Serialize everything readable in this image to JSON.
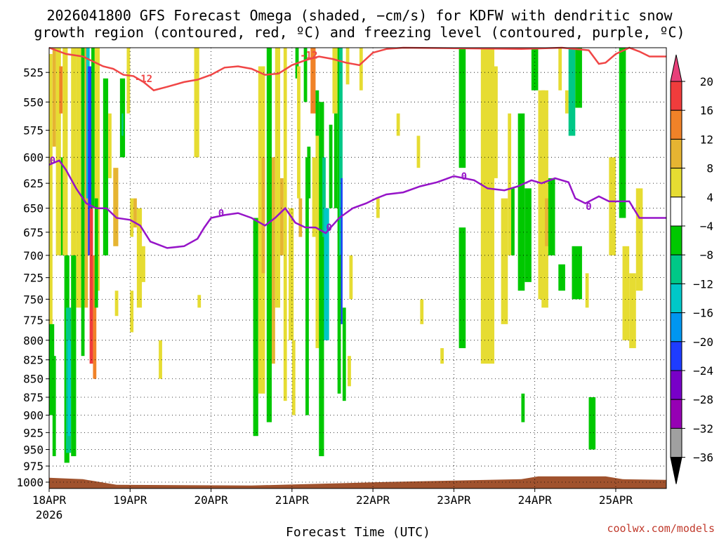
{
  "chart_data": {
    "type": "heatmap",
    "title_line1": "2026041800 GFS Forecast Omega (shaded, −cm/s) for KDFW with dendritic snow",
    "title_line2": "growth region (contoured, red, ºC) and freezing level (contoured, purple, ºC)",
    "xlabel": "Forecast Time (UTC)",
    "credit": "coolwx.com/models",
    "x_ticks": [
      {
        "label": "18APR",
        "hours": 0
      },
      {
        "label": "19APR",
        "hours": 24
      },
      {
        "label": "20APR",
        "hours": 48
      },
      {
        "label": "21APR",
        "hours": 72
      },
      {
        "label": "22APR",
        "hours": 96
      },
      {
        "label": "23APR",
        "hours": 120
      },
      {
        "label": "24APR",
        "hours": 144
      },
      {
        "label": "25APR",
        "hours": 168
      }
    ],
    "x_year_label": "2026",
    "xlim_hours": [
      0,
      183
    ],
    "y_ticks": [
      525,
      550,
      575,
      600,
      625,
      650,
      675,
      700,
      725,
      750,
      775,
      800,
      825,
      850,
      875,
      900,
      925,
      950,
      975,
      1000
    ],
    "ylim_hpa": [
      505,
      1010
    ],
    "y_scale": "log-pressure",
    "grid": "dotted",
    "colorbar": {
      "labels": [
        "20",
        "16",
        "12",
        "8",
        "4",
        "−4",
        "−8",
        "−12",
        "−16",
        "−20",
        "−24",
        "−28",
        "−32",
        "−36"
      ],
      "levels": [
        20,
        16,
        12,
        8,
        4,
        -4,
        -8,
        -12,
        -16,
        -20,
        -24,
        -28,
        -32,
        -36
      ],
      "colors": [
        "#e8407a",
        "#f03c3c",
        "#f08228",
        "#e6b432",
        "#e6dc32",
        "#ffffff",
        "#00c800",
        "#00c887",
        "#00c8c8",
        "#0096f0",
        "#1e3cff",
        "#7800c8",
        "#9600b4",
        "#a0a0a0",
        "#000000"
      ]
    },
    "contours": {
      "minus12_color": "#f04646",
      "freezing_color": "#9614c8",
      "minus12_label": "-12",
      "freezing_label": "0",
      "minus12_line": [
        [
          0,
          505
        ],
        [
          5,
          510
        ],
        [
          10,
          512
        ],
        [
          13,
          516
        ],
        [
          16,
          520
        ],
        [
          19,
          522
        ],
        [
          22,
          527
        ],
        [
          25,
          528
        ],
        [
          28,
          533
        ],
        [
          31,
          540
        ],
        [
          35,
          537
        ],
        [
          40,
          533
        ],
        [
          44,
          531
        ],
        [
          48,
          527
        ],
        [
          52,
          521
        ],
        [
          56,
          520
        ],
        [
          60,
          522
        ],
        [
          64,
          527
        ],
        [
          68,
          526
        ],
        [
          72,
          519
        ],
        [
          76,
          515
        ],
        [
          80,
          512
        ],
        [
          84,
          514
        ],
        [
          88,
          517
        ],
        [
          92,
          519
        ],
        [
          96,
          509
        ],
        [
          100,
          506
        ],
        [
          105,
          505
        ],
        [
          140,
          506
        ],
        [
          152,
          505
        ],
        [
          160,
          507
        ],
        [
          163,
          518
        ],
        [
          165,
          517
        ],
        [
          168,
          510
        ],
        [
          172,
          505
        ],
        [
          175,
          508
        ],
        [
          178,
          512
        ],
        [
          183,
          512
        ]
      ],
      "freezing_line": [
        [
          0,
          607
        ],
        [
          3,
          603
        ],
        [
          5,
          612
        ],
        [
          8,
          630
        ],
        [
          11,
          645
        ],
        [
          14,
          650
        ],
        [
          17,
          650
        ],
        [
          20,
          660
        ],
        [
          24,
          662
        ],
        [
          27,
          668
        ],
        [
          30,
          685
        ],
        [
          35,
          692
        ],
        [
          40,
          690
        ],
        [
          44,
          682
        ],
        [
          46,
          670
        ],
        [
          48,
          660
        ],
        [
          52,
          657
        ],
        [
          56,
          655
        ],
        [
          60,
          660
        ],
        [
          64,
          668
        ],
        [
          67,
          660
        ],
        [
          70,
          650
        ],
        [
          73,
          665
        ],
        [
          76,
          670
        ],
        [
          79,
          670
        ],
        [
          82,
          676
        ],
        [
          86,
          660
        ],
        [
          90,
          650
        ],
        [
          94,
          645
        ],
        [
          97,
          640
        ],
        [
          100,
          636
        ],
        [
          105,
          634
        ],
        [
          110,
          628
        ],
        [
          115,
          624
        ],
        [
          120,
          618
        ],
        [
          126,
          622
        ],
        [
          130,
          630
        ],
        [
          135,
          632
        ],
        [
          139,
          628
        ],
        [
          143,
          622
        ],
        [
          146,
          625
        ],
        [
          150,
          620
        ],
        [
          154,
          624
        ],
        [
          156,
          640
        ],
        [
          159,
          645
        ],
        [
          163,
          638
        ],
        [
          166,
          643
        ],
        [
          172,
          643
        ],
        [
          175,
          660
        ],
        [
          183,
          660
        ]
      ],
      "minus12_label_points": [
        [
          28,
          530
        ],
        [
          77,
          511
        ]
      ],
      "freezing_label_points": [
        [
          1,
          603
        ],
        [
          51,
          655
        ],
        [
          83,
          670
        ],
        [
          123,
          618
        ],
        [
          160,
          648
        ]
      ]
    },
    "cells": [
      {
        "x0": 0,
        "x1": 1,
        "p0": 510,
        "p1": 870,
        "v": 6
      },
      {
        "x0": 0,
        "x1": 1.5,
        "p0": 780,
        "p1": 900,
        "v": -6
      },
      {
        "x0": 1,
        "x1": 2,
        "p0": 505,
        "p1": 590,
        "v": 10
      },
      {
        "x0": 1,
        "x1": 2,
        "p0": 820,
        "p1": 960,
        "v": -6
      },
      {
        "x0": 2,
        "x1": 3.5,
        "p0": 505,
        "p1": 700,
        "v": 6
      },
      {
        "x0": 3,
        "x1": 4,
        "p0": 520,
        "p1": 560,
        "v": 14
      },
      {
        "x0": 3.5,
        "x1": 4.5,
        "p0": 600,
        "p1": 700,
        "v": -6
      },
      {
        "x0": 4,
        "x1": 5.5,
        "p0": 505,
        "p1": 700,
        "v": 6
      },
      {
        "x0": 4.5,
        "x1": 6,
        "p0": 700,
        "p1": 970,
        "v": -6
      },
      {
        "x0": 5,
        "x1": 6.5,
        "p0": 760,
        "p1": 955,
        "v": -10
      },
      {
        "x0": 5.5,
        "x1": 6.5,
        "p0": 800,
        "p1": 930,
        "v": -14
      },
      {
        "x0": 6.5,
        "x1": 8,
        "p0": 505,
        "p1": 700,
        "v": 6
      },
      {
        "x0": 6.5,
        "x1": 8,
        "p0": 700,
        "p1": 960,
        "v": -6
      },
      {
        "x0": 8,
        "x1": 9.5,
        "p0": 505,
        "p1": 760,
        "v": 6
      },
      {
        "x0": 9.5,
        "x1": 10.5,
        "p0": 505,
        "p1": 820,
        "v": -6
      },
      {
        "x0": 10.5,
        "x1": 11.5,
        "p0": 505,
        "p1": 760,
        "v": 10
      },
      {
        "x0": 11,
        "x1": 12,
        "p0": 505,
        "p1": 640,
        "v": -14
      },
      {
        "x0": 11.5,
        "x1": 12.5,
        "p0": 520,
        "p1": 700,
        "v": -22
      },
      {
        "x0": 12,
        "x1": 13,
        "p0": 650,
        "p1": 830,
        "v": 18
      },
      {
        "x0": 12.5,
        "x1": 13.5,
        "p0": 505,
        "p1": 650,
        "v": -6
      },
      {
        "x0": 13,
        "x1": 14,
        "p0": 700,
        "p1": 850,
        "v": 14
      },
      {
        "x0": 13.5,
        "x1": 15,
        "p0": 505,
        "p1": 740,
        "v": 6
      },
      {
        "x0": 13.5,
        "x1": 14.5,
        "p0": 640,
        "p1": 760,
        "v": -6
      },
      {
        "x0": 16,
        "x1": 17.5,
        "p0": 530,
        "p1": 700,
        "v": -6
      },
      {
        "x0": 17.5,
        "x1": 18.5,
        "p0": 560,
        "p1": 620,
        "v": 6
      },
      {
        "x0": 19,
        "x1": 20.5,
        "p0": 610,
        "p1": 690,
        "v": 10
      },
      {
        "x0": 19.5,
        "x1": 20.5,
        "p0": 740,
        "p1": 770,
        "v": 6
      },
      {
        "x0": 21,
        "x1": 22.5,
        "p0": 530,
        "p1": 600,
        "v": -6
      },
      {
        "x0": 21.5,
        "x1": 22,
        "p0": 560,
        "p1": 580,
        "v": -10
      },
      {
        "x0": 23,
        "x1": 24,
        "p0": 505,
        "p1": 560,
        "v": 6
      },
      {
        "x0": 24,
        "x1": 25,
        "p0": 640,
        "p1": 680,
        "v": 6
      },
      {
        "x0": 24,
        "x1": 25,
        "p0": 740,
        "p1": 790,
        "v": 6
      },
      {
        "x0": 25,
        "x1": 26,
        "p0": 640,
        "p1": 670,
        "v": 10
      },
      {
        "x0": 26,
        "x1": 27.5,
        "p0": 650,
        "p1": 760,
        "v": 6
      },
      {
        "x0": 27,
        "x1": 28.5,
        "p0": 690,
        "p1": 730,
        "v": 6
      },
      {
        "x0": 32.5,
        "x1": 33.5,
        "p0": 800,
        "p1": 850,
        "v": 6
      },
      {
        "x0": 43,
        "x1": 44.5,
        "p0": 505,
        "p1": 600,
        "v": 6
      },
      {
        "x0": 44,
        "x1": 45,
        "p0": 745,
        "p1": 760,
        "v": 6
      },
      {
        "x0": 60.5,
        "x1": 62,
        "p0": 660,
        "p1": 930,
        "v": -6
      },
      {
        "x0": 62,
        "x1": 64,
        "p0": 520,
        "p1": 870,
        "v": 6
      },
      {
        "x0": 63,
        "x1": 64,
        "p0": 600,
        "p1": 720,
        "v": 10
      },
      {
        "x0": 64.5,
        "x1": 66,
        "p0": 505,
        "p1": 910,
        "v": -6
      },
      {
        "x0": 66,
        "x1": 67,
        "p0": 600,
        "p1": 830,
        "v": 10
      },
      {
        "x0": 67,
        "x1": 68.5,
        "p0": 505,
        "p1": 760,
        "v": 6
      },
      {
        "x0": 68.5,
        "x1": 69.5,
        "p0": 620,
        "p1": 700,
        "v": 10
      },
      {
        "x0": 69.5,
        "x1": 70.5,
        "p0": 505,
        "p1": 880,
        "v": 6
      },
      {
        "x0": 71,
        "x1": 72.5,
        "p0": 650,
        "p1": 800,
        "v": 6
      },
      {
        "x0": 72,
        "x1": 73,
        "p0": 800,
        "p1": 900,
        "v": 6
      },
      {
        "x0": 73,
        "x1": 74,
        "p0": 505,
        "p1": 530,
        "v": -6
      },
      {
        "x0": 73.5,
        "x1": 74.5,
        "p0": 520,
        "p1": 640,
        "v": 6
      },
      {
        "x0": 74,
        "x1": 75,
        "p0": 640,
        "p1": 680,
        "v": 10
      },
      {
        "x0": 75.5,
        "x1": 76.5,
        "p0": 505,
        "p1": 550,
        "v": -6
      },
      {
        "x0": 76.5,
        "x1": 77.5,
        "p0": 590,
        "p1": 640,
        "v": -6
      },
      {
        "x0": 76,
        "x1": 77,
        "p0": 600,
        "p1": 900,
        "v": -6
      },
      {
        "x0": 77.5,
        "x1": 79,
        "p0": 505,
        "p1": 560,
        "v": 14
      },
      {
        "x0": 78,
        "x1": 79,
        "p0": 600,
        "p1": 680,
        "v": 6
      },
      {
        "x0": 79,
        "x1": 80,
        "p0": 540,
        "p1": 580,
        "v": -6
      },
      {
        "x0": 79,
        "x1": 80.5,
        "p0": 580,
        "p1": 810,
        "v": 6
      },
      {
        "x0": 80,
        "x1": 81.5,
        "p0": 550,
        "p1": 960,
        "v": -6
      },
      {
        "x0": 81,
        "x1": 82,
        "p0": 600,
        "p1": 680,
        "v": -10
      },
      {
        "x0": 81.5,
        "x1": 83,
        "p0": 650,
        "p1": 800,
        "v": -14
      },
      {
        "x0": 83,
        "x1": 84,
        "p0": 570,
        "p1": 650,
        "v": -6
      },
      {
        "x0": 84,
        "x1": 85.5,
        "p0": 505,
        "p1": 560,
        "v": 6
      },
      {
        "x0": 84.5,
        "x1": 85.5,
        "p0": 560,
        "p1": 650,
        "v": -6
      },
      {
        "x0": 85.5,
        "x1": 86.5,
        "p0": 505,
        "p1": 870,
        "v": -6
      },
      {
        "x0": 86,
        "x1": 87,
        "p0": 505,
        "p1": 700,
        "v": -10
      },
      {
        "x0": 86.5,
        "x1": 87,
        "p0": 620,
        "p1": 780,
        "v": -22
      },
      {
        "x0": 87,
        "x1": 88,
        "p0": 760,
        "p1": 880,
        "v": -6
      },
      {
        "x0": 88,
        "x1": 89,
        "p0": 505,
        "p1": 535,
        "v": 6
      },
      {
        "x0": 89,
        "x1": 90,
        "p0": 700,
        "p1": 750,
        "v": 6
      },
      {
        "x0": 88.5,
        "x1": 89.5,
        "p0": 820,
        "p1": 860,
        "v": 6
      },
      {
        "x0": 92,
        "x1": 93,
        "p0": 505,
        "p1": 540,
        "v": 6
      },
      {
        "x0": 97,
        "x1": 98,
        "p0": 640,
        "p1": 660,
        "v": 6
      },
      {
        "x0": 103,
        "x1": 104,
        "p0": 560,
        "p1": 580,
        "v": 6
      },
      {
        "x0": 109,
        "x1": 110,
        "p0": 580,
        "p1": 610,
        "v": 6
      },
      {
        "x0": 110,
        "x1": 111,
        "p0": 750,
        "p1": 780,
        "v": 6
      },
      {
        "x0": 116,
        "x1": 117,
        "p0": 810,
        "p1": 830,
        "v": 6
      },
      {
        "x0": 121.5,
        "x1": 123.5,
        "p0": 505,
        "p1": 610,
        "v": -6
      },
      {
        "x0": 121.5,
        "x1": 123.5,
        "p0": 670,
        "p1": 810,
        "v": -6
      },
      {
        "x0": 128,
        "x1": 132,
        "p0": 505,
        "p1": 830,
        "v": 6
      },
      {
        "x0": 131,
        "x1": 133,
        "p0": 520,
        "p1": 620,
        "v": 6
      },
      {
        "x0": 134,
        "x1": 136,
        "p0": 640,
        "p1": 780,
        "v": 6
      },
      {
        "x0": 136,
        "x1": 137,
        "p0": 560,
        "p1": 700,
        "v": 6
      },
      {
        "x0": 137,
        "x1": 138,
        "p0": 630,
        "p1": 700,
        "v": -6
      },
      {
        "x0": 139,
        "x1": 141,
        "p0": 560,
        "p1": 740,
        "v": -6
      },
      {
        "x0": 140,
        "x1": 141,
        "p0": 870,
        "p1": 910,
        "v": -6
      },
      {
        "x0": 141,
        "x1": 143,
        "p0": 630,
        "p1": 730,
        "v": -6
      },
      {
        "x0": 143,
        "x1": 145,
        "p0": 505,
        "p1": 540,
        "v": -6
      },
      {
        "x0": 145,
        "x1": 147,
        "p0": 540,
        "p1": 750,
        "v": 6
      },
      {
        "x0": 146,
        "x1": 148,
        "p0": 540,
        "p1": 760,
        "v": 6
      },
      {
        "x0": 147,
        "x1": 148,
        "p0": 640,
        "p1": 690,
        "v": 10
      },
      {
        "x0": 148,
        "x1": 150,
        "p0": 620,
        "p1": 700,
        "v": -6
      },
      {
        "x0": 151,
        "x1": 152,
        "p0": 505,
        "p1": 540,
        "v": 6
      },
      {
        "x0": 151,
        "x1": 153,
        "p0": 710,
        "p1": 740,
        "v": -6
      },
      {
        "x0": 153,
        "x1": 154,
        "p0": 540,
        "p1": 560,
        "v": 6
      },
      {
        "x0": 154,
        "x1": 156,
        "p0": 505,
        "p1": 580,
        "v": -10
      },
      {
        "x0": 156,
        "x1": 158,
        "p0": 505,
        "p1": 555,
        "v": -6
      },
      {
        "x0": 155,
        "x1": 158,
        "p0": 690,
        "p1": 750,
        "v": -6
      },
      {
        "x0": 159,
        "x1": 160,
        "p0": 720,
        "p1": 760,
        "v": 6
      },
      {
        "x0": 160,
        "x1": 162,
        "p0": 875,
        "p1": 950,
        "v": -6
      },
      {
        "x0": 166,
        "x1": 168,
        "p0": 600,
        "p1": 700,
        "v": 6
      },
      {
        "x0": 169,
        "x1": 171,
        "p0": 505,
        "p1": 660,
        "v": -6
      },
      {
        "x0": 170,
        "x1": 172,
        "p0": 690,
        "p1": 800,
        "v": 6
      },
      {
        "x0": 172,
        "x1": 174,
        "p0": 720,
        "p1": 810,
        "v": 6
      },
      {
        "x0": 174,
        "x1": 176,
        "p0": 630,
        "p1": 740,
        "v": 6
      }
    ]
  }
}
